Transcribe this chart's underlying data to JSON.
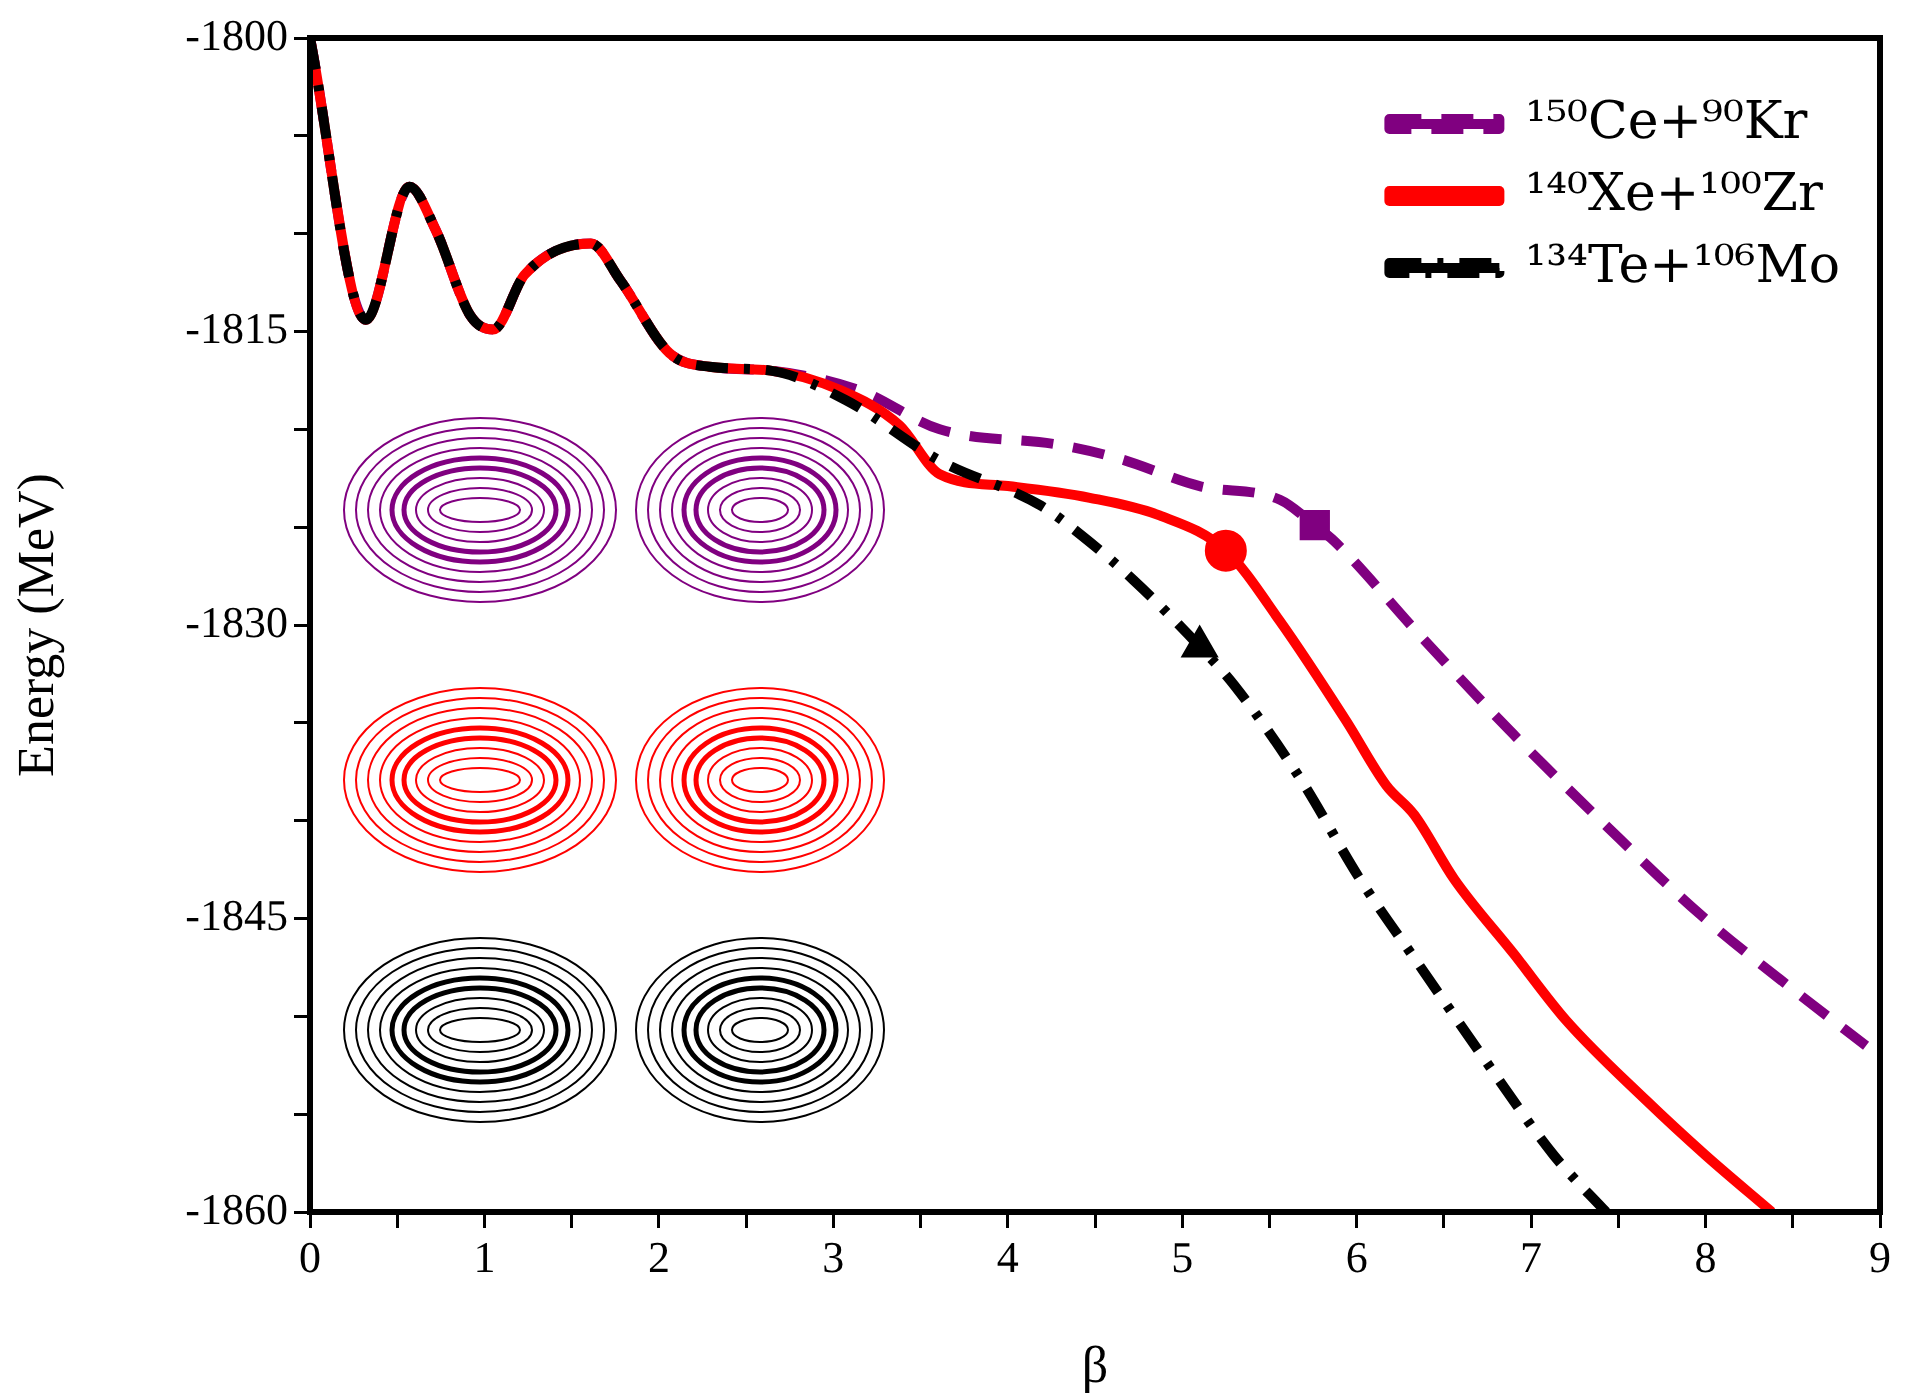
{
  "chart_data": {
    "type": "line",
    "xlabel": "β",
    "ylabel": "Energy (MeV)",
    "xlim": [
      0,
      9
    ],
    "ylim": [
      -1860,
      -1800
    ],
    "xticks": [
      0,
      {
        "value": 0.5,
        "label": null
      },
      1,
      {
        "value": 1.5,
        "label": null
      },
      2,
      {
        "value": 2.5,
        "label": null
      },
      3,
      {
        "value": 3.5,
        "label": null
      },
      4,
      {
        "value": 4.5,
        "label": null
      },
      5,
      {
        "value": 5.5,
        "label": null
      },
      6,
      {
        "value": 6.5,
        "label": null
      },
      7,
      {
        "value": 7.5,
        "label": null
      },
      8,
      {
        "value": 8.5,
        "label": null
      },
      9
    ],
    "yticks": [
      -1860,
      {
        "value": -1855,
        "label": null
      },
      {
        "value": -1850,
        "label": null
      },
      -1845,
      {
        "value": -1840,
        "label": null
      },
      {
        "value": -1835,
        "label": null
      },
      -1830,
      {
        "value": -1825,
        "label": null
      },
      {
        "value": -1820,
        "label": null
      },
      -1815,
      {
        "value": -1810,
        "label": null
      },
      {
        "value": -1805,
        "label": null
      },
      -1800
    ],
    "grid": false,
    "legend": "top right",
    "marker": "none",
    "series": [
      {
        "name": "¹⁵⁰Ce+⁹⁰Kr",
        "color": "#800080",
        "line_style": "dashed",
        "x": [
          0,
          0.32,
          0.57,
          0.72,
          0.92,
          1.05,
          1.23,
          1.61,
          1.78,
          2.06,
          2.29,
          2.64,
          3.15,
          3.61,
          4.3,
          4.64,
          5.1,
          5.56,
          5.76,
          5.87,
          6.36,
          6.9,
          7.4,
          7.97,
          8.54,
          8.92
        ],
        "values": [
          -1800,
          -1814.4,
          -1807.6,
          -1809.8,
          -1814.2,
          -1814.9,
          -1812.1,
          -1810.5,
          -1812.4,
          -1816.1,
          -1816.8,
          -1817,
          -1818,
          -1820,
          -1820.8,
          -1821.5,
          -1822.9,
          -1823.6,
          -1824.9,
          -1825.7,
          -1830.5,
          -1835.6,
          -1840,
          -1844.8,
          -1848.9,
          -1851.5
        ]
      },
      {
        "name": "¹⁴⁰Xe+¹⁰⁰Zr",
        "color": "#ff0000",
        "line_style": "solid",
        "x": [
          0,
          0.32,
          0.57,
          0.72,
          0.92,
          1.05,
          1.23,
          1.61,
          1.78,
          2.06,
          2.29,
          2.64,
          3.04,
          3.38,
          3.61,
          4,
          4.47,
          4.87,
          5.25,
          5.56,
          5.94,
          6.17,
          6.33,
          6.56,
          6.9,
          7.2,
          7.66,
          8,
          8.38
        ],
        "values": [
          -1800,
          -1814.4,
          -1807.6,
          -1809.8,
          -1814.2,
          -1814.9,
          -1812.1,
          -1810.5,
          -1812.4,
          -1816.1,
          -1816.8,
          -1817,
          -1818,
          -1819.8,
          -1822.3,
          -1822.9,
          -1823.5,
          -1824.4,
          -1826.2,
          -1829.8,
          -1834.9,
          -1838.2,
          -1839.7,
          -1843,
          -1846.8,
          -1850.2,
          -1854.3,
          -1857.1,
          -1860
        ]
      },
      {
        "name": "¹³⁴Te+¹⁰⁶Mo",
        "color": "#000000",
        "line_style": "dashdot",
        "x": [
          0,
          0.32,
          0.57,
          0.72,
          0.92,
          1.05,
          1.23,
          1.61,
          1.78,
          2.06,
          2.29,
          2.64,
          3.07,
          3.61,
          4.19,
          4.42,
          4.72,
          5.1,
          5.3,
          5.68,
          6.02,
          6.36,
          6.71,
          7.13,
          7.43
        ],
        "values": [
          -1800,
          -1814.4,
          -1807.6,
          -1809.8,
          -1814.2,
          -1814.9,
          -1812.1,
          -1810.5,
          -1812.4,
          -1816.1,
          -1816.8,
          -1817,
          -1818.5,
          -1821.6,
          -1823.9,
          -1825.4,
          -1827.7,
          -1831.1,
          -1833.1,
          -1837.9,
          -1843,
          -1847.4,
          -1851.9,
          -1857.1,
          -1860
        ]
      },
      {
        "type": "scatter",
        "marker": "square",
        "color": "#800080",
        "x": [
          5.76
        ],
        "values": [
          -1824.9
        ]
      },
      {
        "type": "scatter",
        "marker": "circle",
        "color": "#ff0000",
        "x": [
          5.25
        ],
        "values": [
          -1826.2
        ]
      },
      {
        "type": "scatter",
        "marker": "triangle",
        "color": "#000000",
        "x": [
          5.1
        ],
        "values": [
          -1831.1
        ]
      }
    ]
  }
}
